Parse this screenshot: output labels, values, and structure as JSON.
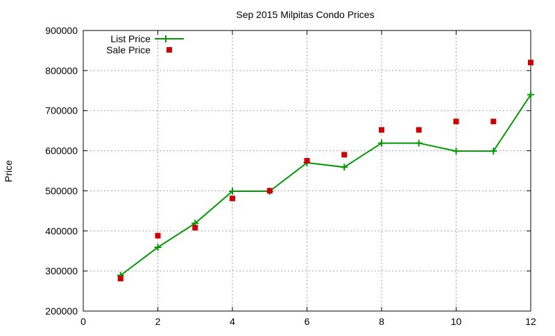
{
  "chart_data": {
    "type": "line",
    "title": "Sep 2015 Milpitas Condo Prices",
    "xlabel": "",
    "ylabel": "Price",
    "xlim": [
      0,
      12
    ],
    "ylim": [
      200000,
      900000
    ],
    "xticks": [
      0,
      2,
      4,
      6,
      8,
      10,
      12
    ],
    "yticks": [
      200000,
      300000,
      400000,
      500000,
      600000,
      700000,
      800000,
      900000
    ],
    "grid": true,
    "legend_position": "top-left",
    "series": [
      {
        "name": "List Price",
        "style": "line-with-plus-markers",
        "color": "#009900",
        "x": [
          1,
          2,
          3,
          4,
          5,
          6,
          7,
          8,
          9,
          10,
          11,
          12
        ],
        "y": [
          289000,
          359000,
          419000,
          499000,
          499000,
          570000,
          559000,
          619000,
          619000,
          599000,
          599000,
          740000
        ]
      },
      {
        "name": "Sale Price",
        "style": "square-markers",
        "color": "#cc0000",
        "x": [
          1,
          2,
          3,
          4,
          5,
          6,
          7,
          8,
          9,
          10,
          11,
          12
        ],
        "y": [
          281000,
          388000,
          408000,
          481000,
          500000,
          575000,
          590000,
          652000,
          652000,
          673000,
          673000,
          820000
        ]
      }
    ]
  }
}
